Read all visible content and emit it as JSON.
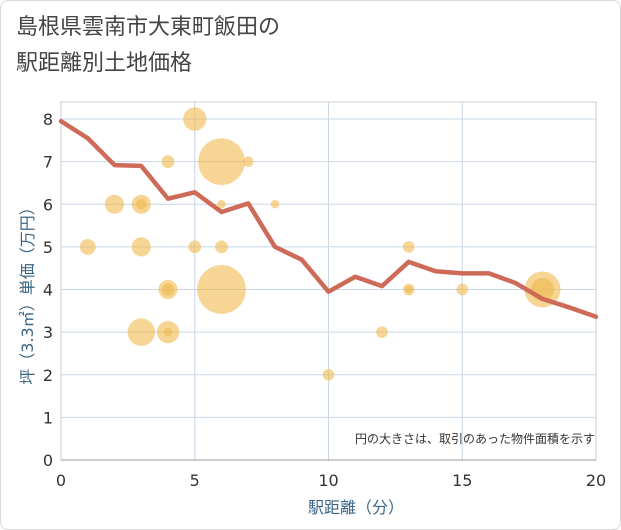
{
  "chart_data": {
    "type": "scatter",
    "title": "島根県雲南市大東町飯田の\n駅距離別土地価格",
    "xlabel": "駅距離（分）",
    "ylabel": "坪（3.3㎡）単価（万円）",
    "xlim": [
      0,
      20
    ],
    "ylim": [
      0,
      8.4
    ],
    "xticks": [
      "0",
      "5",
      "10",
      "15",
      "20"
    ],
    "yticks": [
      "0",
      "1",
      "2",
      "3",
      "4",
      "5",
      "6",
      "7",
      "8"
    ],
    "annotation": "円の大きさは、取引のあった物件面積を示す",
    "bubble_color": "#f0b94f",
    "line_color": "#cd6a58",
    "scatter": [
      {
        "x": 1,
        "y": 5,
        "s": 1.5
      },
      {
        "x": 2,
        "y": 6,
        "s": 1.8
      },
      {
        "x": 3,
        "y": 6,
        "s": 1.8
      },
      {
        "x": 3,
        "y": 6,
        "s": 1.0
      },
      {
        "x": 3,
        "y": 5,
        "s": 1.8
      },
      {
        "x": 3,
        "y": 3,
        "s": 2.6
      },
      {
        "x": 4,
        "y": 7,
        "s": 1.2
      },
      {
        "x": 4,
        "y": 4,
        "s": 1.8
      },
      {
        "x": 4,
        "y": 4,
        "s": 1.2
      },
      {
        "x": 4,
        "y": 3,
        "s": 2.1
      },
      {
        "x": 4,
        "y": 3,
        "s": 0.8
      },
      {
        "x": 5,
        "y": 8,
        "s": 2.2
      },
      {
        "x": 5,
        "y": 5,
        "s": 1.2
      },
      {
        "x": 6,
        "y": 7,
        "s": 4.4
      },
      {
        "x": 6,
        "y": 6,
        "s": 0.8
      },
      {
        "x": 6,
        "y": 5,
        "s": 1.2
      },
      {
        "x": 6,
        "y": 4,
        "s": 4.6
      },
      {
        "x": 7,
        "y": 7,
        "s": 1.0
      },
      {
        "x": 8,
        "y": 6,
        "s": 0.8
      },
      {
        "x": 10,
        "y": 2,
        "s": 1.1
      },
      {
        "x": 12,
        "y": 3,
        "s": 1.1
      },
      {
        "x": 13,
        "y": 5,
        "s": 1.1
      },
      {
        "x": 13,
        "y": 4,
        "s": 1.1
      },
      {
        "x": 13,
        "y": 4,
        "s": 0.7
      },
      {
        "x": 15,
        "y": 4,
        "s": 1.1
      },
      {
        "x": 18,
        "y": 4,
        "s": 3.4
      },
      {
        "x": 18,
        "y": 4,
        "s": 2.2
      }
    ],
    "trend": {
      "x": [
        0,
        1,
        2,
        3,
        4,
        5,
        6,
        7,
        8,
        9,
        10,
        11,
        12,
        13,
        14,
        15,
        16,
        17,
        18,
        19,
        20
      ],
      "y": [
        7.95,
        7.55,
        6.92,
        6.9,
        6.13,
        6.28,
        5.82,
        6.02,
        5.0,
        4.7,
        3.95,
        4.3,
        4.08,
        4.65,
        4.43,
        4.38,
        4.38,
        4.15,
        3.78,
        3.58,
        3.36
      ]
    }
  }
}
